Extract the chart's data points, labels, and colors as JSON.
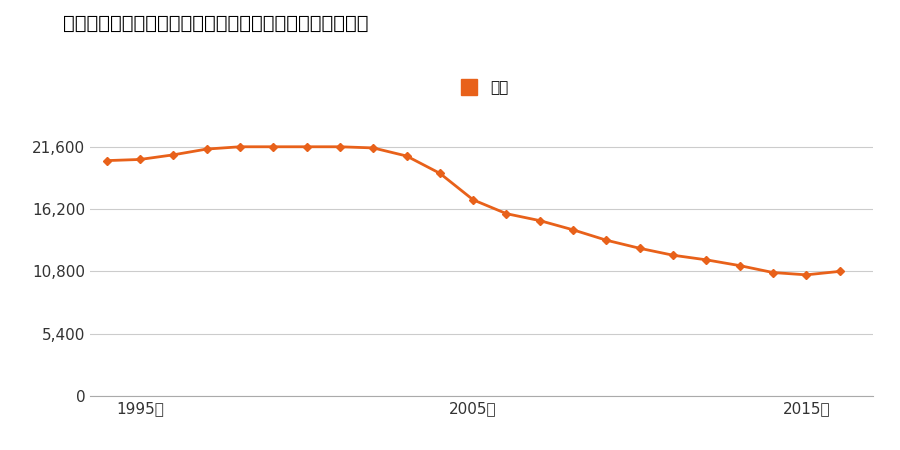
{
  "title": "宮城県亘理郡山元町山寺字西牛橋４０番２１３の地価推移",
  "legend_label": "価格",
  "line_color": "#e8611a",
  "marker_color": "#e8611a",
  "background_color": "#ffffff",
  "years": [
    1994,
    1995,
    1996,
    1997,
    1998,
    1999,
    2000,
    2001,
    2002,
    2003,
    2004,
    2005,
    2006,
    2007,
    2008,
    2009,
    2010,
    2011,
    2012,
    2013,
    2014,
    2015,
    2016
  ],
  "values": [
    20400,
    20500,
    20900,
    21400,
    21600,
    21600,
    21600,
    21600,
    21500,
    20800,
    19300,
    17000,
    15800,
    15200,
    14400,
    13500,
    12800,
    12200,
    11800,
    11300,
    10700,
    10500,
    10800
  ],
  "xticks": [
    1995,
    2005,
    2015
  ],
  "xtick_labels": [
    "1995年",
    "2005年",
    "2015年"
  ],
  "yticks": [
    0,
    5400,
    10800,
    16200,
    21600
  ],
  "ytick_labels": [
    "0",
    "5,400",
    "10,800",
    "16,200",
    "21,600"
  ],
  "ylim": [
    0,
    23400
  ],
  "xlim": [
    1993.5,
    2017.0
  ],
  "grid_color": "#cccccc",
  "title_fontsize": 14,
  "tick_fontsize": 11,
  "legend_fontsize": 11
}
